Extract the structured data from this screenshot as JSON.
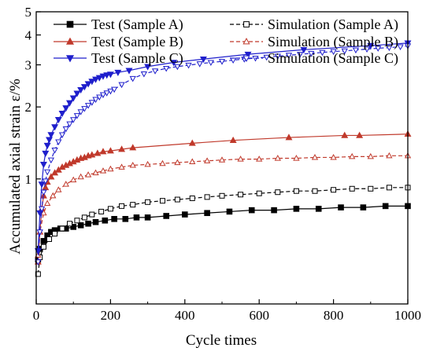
{
  "chart_data": {
    "type": "line",
    "title": "",
    "xlabel": "Cycle times",
    "ylabel": "Accumulated axial strain ε/%",
    "xlim": [
      0,
      1000
    ],
    "ylim": [
      0.3,
      5
    ],
    "y_scale": "log",
    "xticks": [
      0,
      200,
      400,
      600,
      800,
      1000
    ],
    "xtick_labels": [
      "0",
      "200",
      "400",
      "600",
      "800",
      "1000"
    ],
    "yticks": [
      1,
      2,
      3,
      4,
      5
    ],
    "ytick_labels": [
      "1",
      "2",
      "3",
      "4",
      "5"
    ],
    "grid": false,
    "legend_position": "top",
    "series": [
      {
        "name": "Test (Sample A)",
        "color": "#000000",
        "dash": "solid",
        "marker": "square",
        "filled": true,
        "x": [
          5,
          10,
          20,
          30,
          40,
          50,
          65,
          80,
          100,
          120,
          140,
          160,
          185,
          210,
          240,
          270,
          300,
          350,
          400,
          460,
          520,
          580,
          640,
          700,
          760,
          820,
          880,
          940,
          1000
        ],
        "y": [
          0.46,
          0.51,
          0.55,
          0.58,
          0.6,
          0.61,
          0.62,
          0.62,
          0.63,
          0.64,
          0.65,
          0.66,
          0.67,
          0.68,
          0.68,
          0.69,
          0.69,
          0.7,
          0.71,
          0.72,
          0.73,
          0.74,
          0.74,
          0.75,
          0.75,
          0.76,
          0.76,
          0.77,
          0.77
        ]
      },
      {
        "name": "Simulation (Sample A)",
        "color": "#000000",
        "dash": "dashed",
        "marker": "square",
        "filled": false,
        "x": [
          5,
          10,
          20,
          35,
          50,
          70,
          90,
          110,
          130,
          150,
          175,
          200,
          230,
          260,
          300,
          340,
          380,
          420,
          460,
          500,
          550,
          600,
          650,
          700,
          750,
          800,
          850,
          900,
          950,
          1000
        ],
        "y": [
          0.4,
          0.47,
          0.52,
          0.56,
          0.59,
          0.62,
          0.65,
          0.67,
          0.69,
          0.71,
          0.73,
          0.75,
          0.77,
          0.78,
          0.8,
          0.81,
          0.82,
          0.83,
          0.84,
          0.85,
          0.86,
          0.87,
          0.88,
          0.89,
          0.89,
          0.9,
          0.91,
          0.91,
          0.92,
          0.92
        ]
      },
      {
        "name": "Test (Sample B)",
        "color": "#c0392b",
        "dash": "solid",
        "marker": "triangle-up",
        "filled": true,
        "x": [
          5,
          10,
          15,
          20,
          25,
          30,
          40,
          50,
          60,
          70,
          80,
          90,
          100,
          110,
          120,
          130,
          140,
          150,
          165,
          180,
          200,
          230,
          260,
          420,
          530,
          680,
          830,
          870,
          1000
        ],
        "y": [
          0.45,
          0.6,
          0.75,
          0.85,
          0.92,
          0.97,
          1.02,
          1.06,
          1.09,
          1.12,
          1.14,
          1.16,
          1.18,
          1.2,
          1.22,
          1.23,
          1.25,
          1.26,
          1.28,
          1.3,
          1.31,
          1.33,
          1.35,
          1.41,
          1.45,
          1.49,
          1.52,
          1.52,
          1.54
        ]
      },
      {
        "name": "Simulation (Sample B)",
        "color": "#c0392b",
        "dash": "dashed",
        "marker": "triangle-up",
        "filled": false,
        "x": [
          5,
          10,
          20,
          30,
          45,
          60,
          80,
          100,
          120,
          140,
          160,
          180,
          200,
          230,
          260,
          300,
          340,
          380,
          420,
          460,
          500,
          550,
          600,
          650,
          700,
          750,
          800,
          850,
          900,
          950,
          1000
        ],
        "y": [
          0.48,
          0.6,
          0.72,
          0.79,
          0.85,
          0.9,
          0.95,
          0.99,
          1.02,
          1.04,
          1.06,
          1.08,
          1.1,
          1.12,
          1.14,
          1.15,
          1.16,
          1.17,
          1.18,
          1.19,
          1.2,
          1.21,
          1.21,
          1.22,
          1.22,
          1.23,
          1.23,
          1.24,
          1.24,
          1.25,
          1.25
        ]
      },
      {
        "name": "Test (Sample C)",
        "color": "#1f1fcc",
        "dash": "solid",
        "marker": "triangle-down",
        "filled": true,
        "x": [
          5,
          10,
          15,
          20,
          25,
          30,
          35,
          40,
          50,
          60,
          70,
          80,
          90,
          100,
          110,
          120,
          130,
          140,
          150,
          160,
          170,
          180,
          190,
          200,
          220,
          250,
          300,
          370,
          450,
          570,
          720,
          900,
          1000
        ],
        "y": [
          0.5,
          0.72,
          0.95,
          1.15,
          1.28,
          1.38,
          1.46,
          1.53,
          1.65,
          1.77,
          1.88,
          1.98,
          2.08,
          2.18,
          2.28,
          2.36,
          2.43,
          2.5,
          2.56,
          2.61,
          2.65,
          2.69,
          2.72,
          2.74,
          2.79,
          2.84,
          2.95,
          3.07,
          3.17,
          3.32,
          3.47,
          3.61,
          3.7
        ]
      },
      {
        "name": "Simulation (Sample C)",
        "color": "#1f1fcc",
        "dash": "dashed",
        "marker": "triangle-down",
        "filled": false,
        "x": [
          5,
          10,
          15,
          20,
          25,
          30,
          40,
          50,
          60,
          70,
          80,
          90,
          100,
          110,
          120,
          130,
          140,
          150,
          160,
          170,
          180,
          190,
          200,
          210,
          230,
          260,
          290,
          320,
          350,
          380,
          410,
          440,
          470,
          500,
          530,
          560,
          590,
          620,
          650,
          680,
          710,
          740,
          770,
          800,
          830,
          860,
          890,
          920,
          950,
          980,
          1000
        ],
        "y": [
          0.45,
          0.6,
          0.75,
          0.88,
          0.98,
          1.07,
          1.2,
          1.32,
          1.43,
          1.53,
          1.62,
          1.7,
          1.77,
          1.84,
          1.91,
          1.97,
          2.03,
          2.09,
          2.15,
          2.2,
          2.25,
          2.29,
          2.33,
          2.37,
          2.48,
          2.63,
          2.75,
          2.83,
          2.9,
          2.95,
          2.99,
          3.03,
          3.07,
          3.1,
          3.14,
          3.17,
          3.2,
          3.23,
          3.26,
          3.29,
          3.32,
          3.35,
          3.38,
          3.41,
          3.43,
          3.46,
          3.49,
          3.52,
          3.54,
          3.57,
          3.6
        ]
      }
    ]
  }
}
